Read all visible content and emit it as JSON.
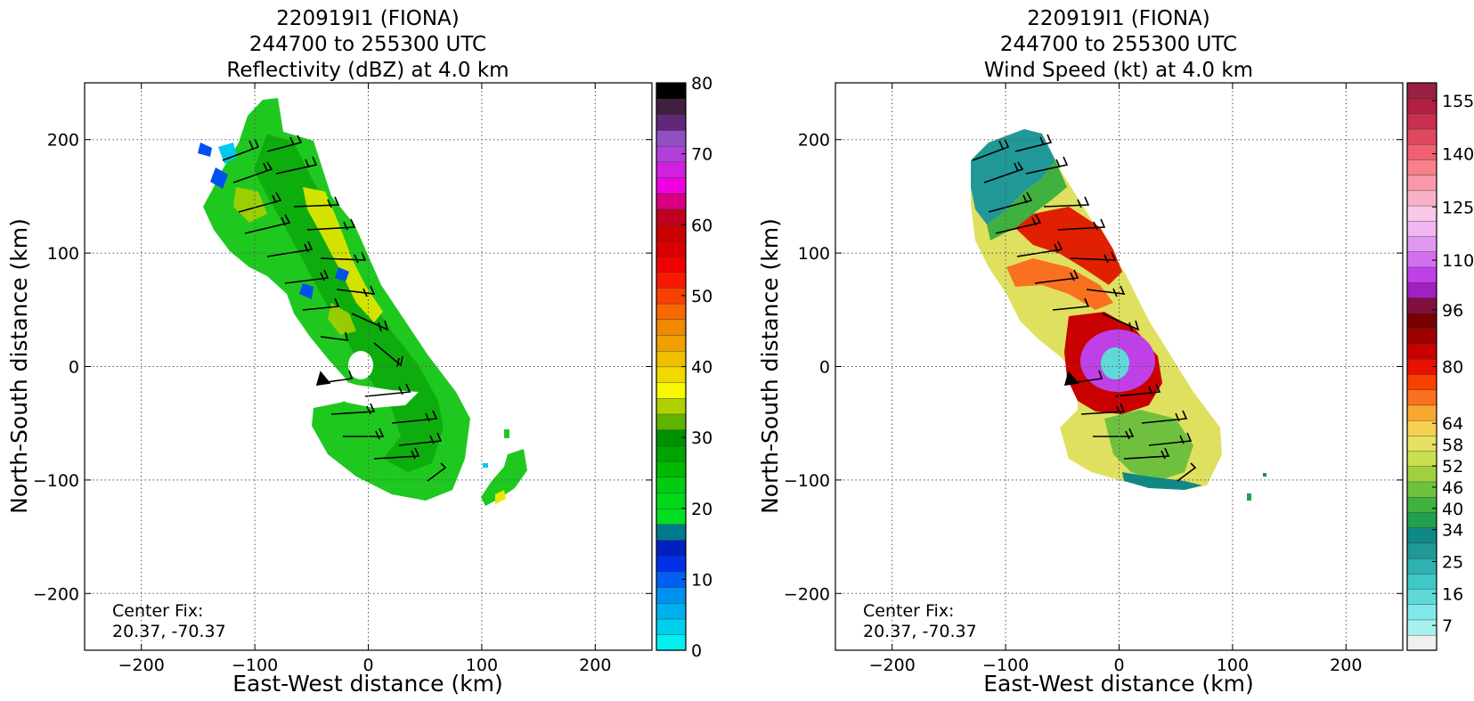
{
  "panels": [
    {
      "title_lines": [
        "220919I1 (FIONA)",
        "244700 to 255300 UTC",
        "Reflectivity (dBZ) at 4.0 km"
      ],
      "xlabel": "East-West distance (km)",
      "ylabel": "North-South distance (km)",
      "annotation_lines": [
        "Center Fix:",
        "20.37, -70.37"
      ],
      "colorbar": {
        "min": 0,
        "max": 80,
        "tick_values": [
          0,
          10,
          20,
          30,
          40,
          50,
          60,
          70,
          80
        ],
        "tick_labels": [
          "0",
          "10",
          "20",
          "30",
          "40",
          "50",
          "60",
          "70",
          "80"
        ],
        "colors": [
          "#00f0f0",
          "#00d0ec",
          "#00b0ee",
          "#0090f0",
          "#0060f0",
          "#0030e8",
          "#0020c0",
          "#007a8c",
          "#00e020",
          "#00d818",
          "#00cc10",
          "#00b800",
          "#00a400",
          "#009000",
          "#60b400",
          "#b0d000",
          "#f8f800",
          "#f0d800",
          "#f0c000",
          "#f0a000",
          "#f08800",
          "#f86800",
          "#f84000",
          "#f81800",
          "#f00000",
          "#d80000",
          "#c80000",
          "#c00020",
          "#d80080",
          "#f000e0",
          "#d020e0",
          "#b040d8",
          "#9050c0",
          "#602878",
          "#402040",
          "#000000"
        ]
      }
    },
    {
      "title_lines": [
        "220919I1 (FIONA)",
        "244700 to 255300 UTC",
        "Wind Speed (kt) at 4.0 km"
      ],
      "xlabel": "East-West distance (km)",
      "ylabel": "North-South distance (km)",
      "annotation_lines": [
        "Center Fix:",
        "20.37, -70.37"
      ],
      "colorbar": {
        "min": 0,
        "max": 160,
        "tick_values": [
          7,
          16,
          25,
          34,
          40,
          46,
          52,
          58,
          64,
          80,
          96,
          110,
          125,
          140,
          155
        ],
        "tick_labels": [
          "7",
          "16",
          "25",
          "34",
          "40",
          "46",
          "52",
          "58",
          "64",
          "80",
          "96",
          "110",
          "125",
          "140",
          "155"
        ],
        "colors": [
          "#f0f0f0",
          "#a8f0ee",
          "#80e8e8",
          "#60d8d8",
          "#40c8c8",
          "#30b0b0",
          "#209898",
          "#108888",
          "#20a050",
          "#40b040",
          "#70c040",
          "#a0d040",
          "#c8e050",
          "#e8e060",
          "#f8d050",
          "#f8a830",
          "#f87020",
          "#f84000",
          "#e81000",
          "#c80000",
          "#a00000",
          "#780000",
          "#801040",
          "#a020c0",
          "#c040e8",
          "#d070f0",
          "#e098f0",
          "#f0b8f0",
          "#f8c8e8",
          "#f8b0c8",
          "#f898a8",
          "#f88088",
          "#f06070",
          "#e04860",
          "#c83050",
          "#b02040",
          "#982040"
        ]
      }
    }
  ],
  "chart_data": [
    {
      "type": "heatmap",
      "title": "220919I1 (FIONA) 244700 to 255300 UTC Reflectivity (dBZ) at 4.0 km",
      "xlabel": "East-West distance (km)",
      "ylabel": "North-South distance (km)",
      "xlim": [
        -250,
        250
      ],
      "ylim": [
        -250,
        250
      ],
      "x_ticks": [
        -200,
        -100,
        0,
        100,
        200
      ],
      "y_ticks": [
        -200,
        -100,
        0,
        100,
        200
      ],
      "grid": true,
      "colorbar_label": "dBZ",
      "colorbar_range": [
        0,
        80
      ]
    },
    {
      "type": "heatmap",
      "title": "220919I1 (FIONA) 244700 to 255300 UTC Wind Speed (kt) at 4.0 km",
      "xlabel": "East-West distance (km)",
      "ylabel": "North-South distance (km)",
      "xlim": [
        -250,
        250
      ],
      "ylim": [
        -250,
        250
      ],
      "x_ticks": [
        -200,
        -100,
        0,
        100,
        200
      ],
      "y_ticks": [
        -200,
        -100,
        0,
        100,
        200
      ],
      "grid": true,
      "colorbar_label": "kt",
      "colorbar_range": [
        0,
        160
      ]
    }
  ]
}
